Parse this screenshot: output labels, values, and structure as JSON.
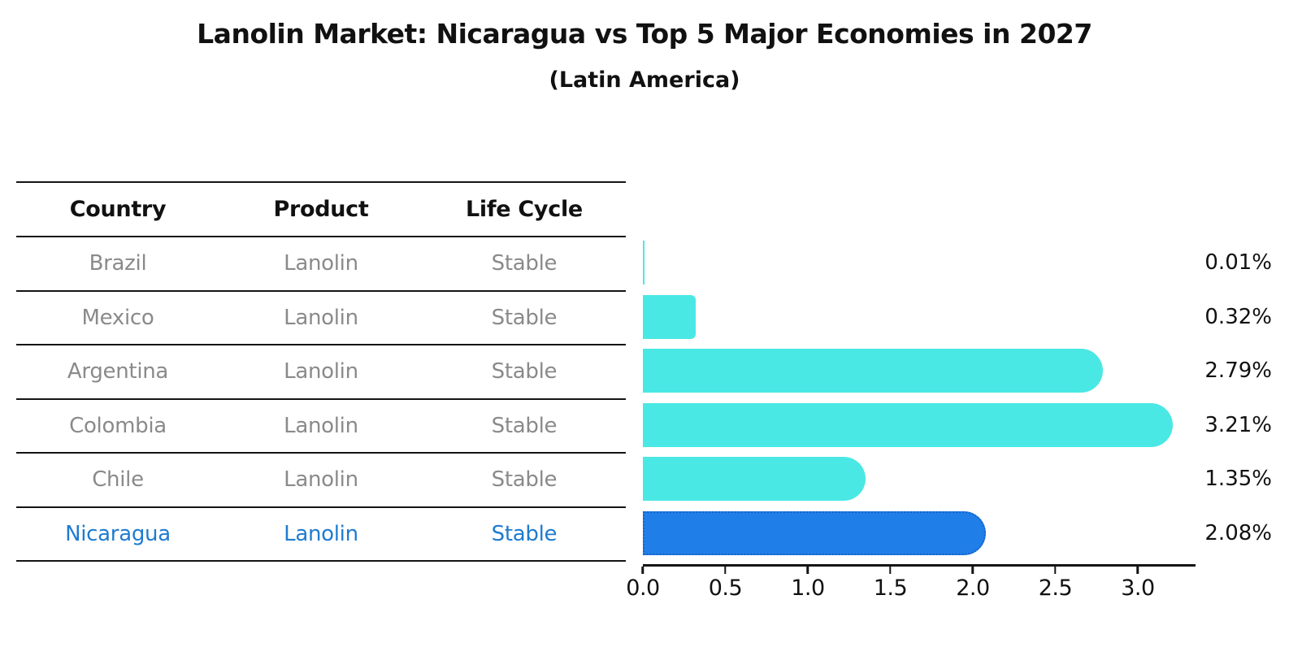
{
  "title": "Lanolin Market: Nicaragua vs Top 5 Major Economies in 2027",
  "subtitle": "(Latin America)",
  "table": {
    "headers": [
      "Country",
      "Product",
      "Life Cycle"
    ],
    "rows": [
      {
        "country": "Brazil",
        "product": "Lanolin",
        "life_cycle": "Stable"
      },
      {
        "country": "Mexico",
        "product": "Lanolin",
        "life_cycle": "Stable"
      },
      {
        "country": "Argentina",
        "product": "Lanolin",
        "life_cycle": "Stable"
      },
      {
        "country": "Colombia",
        "product": "Lanolin",
        "life_cycle": "Stable"
      },
      {
        "country": "Chile",
        "product": "Lanolin",
        "life_cycle": "Stable"
      },
      {
        "country": "Nicaragua",
        "product": "Lanolin",
        "life_cycle": "Stable"
      }
    ]
  },
  "chart_data": {
    "type": "bar",
    "orientation": "horizontal",
    "title": "Lanolin Market: Nicaragua vs Top 5 Major Economies in 2027",
    "subtitle": "(Latin America)",
    "categories": [
      "Brazil",
      "Mexico",
      "Argentina",
      "Colombia",
      "Chile",
      "Nicaragua"
    ],
    "values": [
      0.01,
      0.32,
      2.79,
      3.21,
      1.35,
      2.08
    ],
    "value_labels": [
      "0.01%",
      "0.32%",
      "2.79%",
      "3.21%",
      "1.35%",
      "2.08%"
    ],
    "xticks": [
      "0.0",
      "0.5",
      "1.0",
      "1.5",
      "2.0",
      "2.5",
      "3.0"
    ],
    "xtick_values": [
      0,
      0.5,
      1,
      1.5,
      2,
      2.5,
      3
    ],
    "xlim": [
      0,
      3.35
    ],
    "grid": false,
    "legend": "none",
    "bar_color": "#4ae8e4",
    "highlight_index": 5,
    "highlight_color": "#207ee8",
    "highlight_border_color": "#1663c7",
    "highlight_text_color": "#1f7bd0",
    "row_text_color": "#8a8a8a"
  }
}
